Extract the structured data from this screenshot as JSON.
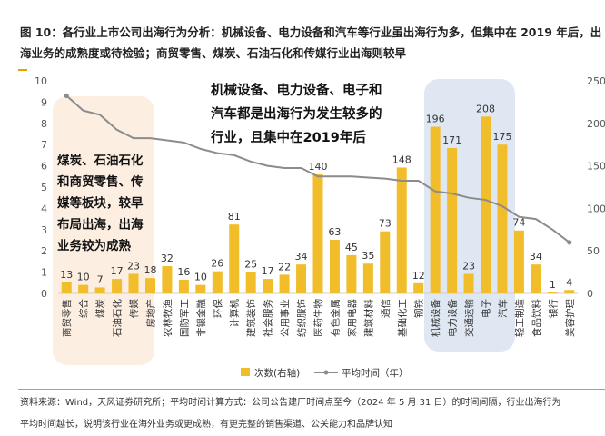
{
  "title": {
    "line1": "图 10：各行业上市公司出海行为分析：机械设备、电力设备和汽车等行业虽出海行为多，但集中在 2019 年后，出",
    "line2": "海业务的成熟度或待检验；商贸零售、煤炭、石油石化和传媒行业出海则较早"
  },
  "annotations": {
    "left": [
      "煤炭、石油石化",
      "和商贸零售、传",
      "媒等板块，较早",
      "布局出海，出海",
      "业务较为成熟"
    ],
    "top": [
      "机械设备、电力设备、电子和",
      "汽车都是出海行为发生较多的",
      "行业，且集中在2019年后"
    ]
  },
  "source": {
    "line1": "资料来源：Wind，天风证券研究所；平均时间计算方式：公司公告建厂时间点至今（2024 年 5 月 31 日）的时间间隔，行业出海行为",
    "line2": "平均时间越长，说明该行业在海外业务或更成熟，有更完整的销售渠道、公关能力和品牌认知"
  },
  "colors": {
    "bar": "#f2bd2a",
    "line": "#8c8c8c",
    "highlight_left": "#fdeee2",
    "highlight_right": "#dfe7f3"
  },
  "chart_data": {
    "type": "bar",
    "categories": [
      "商贸零售",
      "综合",
      "煤炭",
      "石油石化",
      "传媒",
      "房地产",
      "农林牧渔",
      "国防军工",
      "非银金融",
      "环保",
      "计算机",
      "建筑装饰",
      "社会服务",
      "公用事业",
      "纺织服饰",
      "医药生物",
      "有色金属",
      "家用电器",
      "建筑材料",
      "通信",
      "基础化工",
      "钢铁",
      "机械设备",
      "电力设备",
      "交通运输",
      "电子",
      "汽车",
      "轻工制造",
      "食品饮料",
      "银行",
      "美容护理"
    ],
    "series": [
      {
        "name": "次数(右轴)",
        "axis": "right",
        "type": "bar",
        "values": [
          13,
          10,
          7,
          17,
          23,
          18,
          32,
          16,
          10,
          26,
          81,
          25,
          17,
          22,
          34,
          140,
          63,
          45,
          35,
          73,
          148,
          12,
          196,
          171,
          23,
          208,
          175,
          74,
          34,
          1,
          4
        ]
      },
      {
        "name": "平均时间（年）",
        "axis": "left",
        "type": "line",
        "values": [
          9.3,
          8.6,
          8.4,
          7.7,
          7.3,
          7.3,
          7.2,
          7.1,
          6.8,
          6.6,
          6.5,
          6.2,
          6.0,
          5.9,
          5.9,
          5.5,
          5.5,
          5.5,
          5.45,
          5.4,
          5.3,
          5.3,
          4.8,
          4.7,
          4.5,
          4.4,
          4.1,
          3.6,
          3.5,
          3.0,
          2.4
        ]
      }
    ],
    "y_left": {
      "ticks": [
        0,
        1,
        2,
        3,
        4,
        5,
        6,
        7,
        8,
        9,
        10
      ],
      "ylim": [
        0,
        10
      ]
    },
    "y_right": {
      "ticks": [
        0,
        50,
        100,
        150,
        200,
        250
      ],
      "ylim": [
        0,
        250
      ]
    },
    "legend_placement": "bottom",
    "grid": false
  }
}
